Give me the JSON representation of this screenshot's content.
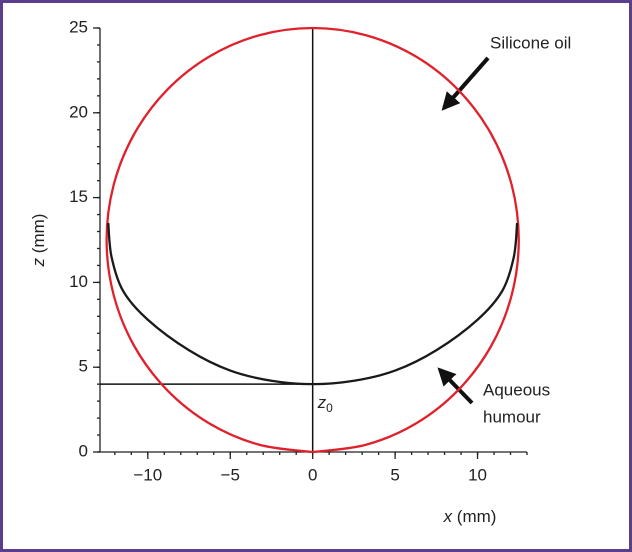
{
  "chart_data": {
    "type": "line",
    "xlabel": {
      "var": "x",
      "unit": " (mm)"
    },
    "ylabel": {
      "var": "z",
      "unit": " (mm)"
    },
    "xlim": [
      -12.9,
      13
    ],
    "ylim": [
      0,
      25
    ],
    "xticks": [
      {
        "value": -10,
        "label": "−10"
      },
      {
        "value": -5,
        "label": "−5"
      },
      0,
      5,
      10
    ],
    "yticks": [
      0,
      5,
      10,
      15,
      20,
      25
    ],
    "minor_tick_step": 1,
    "reference_lines": {
      "x0": 0,
      "z0": 4,
      "z0_label": {
        "var": "z",
        "sub": "0"
      }
    },
    "annotations": [
      {
        "lines": [
          "Silicone oil"
        ]
      },
      {
        "lines": [
          "Aqueous",
          "humour"
        ]
      }
    ],
    "series": [
      {
        "color": "#e0202a",
        "x": [
          0,
          3.235,
          6.25,
          8.839,
          10.825,
          12.074,
          12.5,
          12.074,
          10.825,
          8.839,
          6.25,
          3.235,
          0,
          -3.235,
          -6.25,
          -8.839,
          -10.825,
          -12.074,
          -12.5,
          -12.074,
          -10.825,
          -8.839,
          -6.25,
          -3.235,
          0
        ],
        "values": [
          0,
          0.426,
          1.675,
          3.661,
          6.25,
          9.265,
          12.5,
          15.735,
          18.75,
          21.339,
          23.325,
          24.574,
          25,
          24.574,
          23.325,
          21.339,
          18.75,
          15.735,
          12.5,
          9.265,
          6.25,
          3.661,
          1.675,
          0.426,
          0
        ]
      },
      {
        "color": "#1a1a1a",
        "x": [
          -12.4,
          -12.2,
          -11.5,
          -10,
          -7.5,
          -5,
          -2.5,
          0,
          2.5,
          5,
          7.5,
          10,
          11.5,
          12.2,
          12.4
        ],
        "values": [
          13.5,
          11.5,
          9.5,
          7.8,
          6.0,
          4.8,
          4.2,
          4,
          4.2,
          4.8,
          6.0,
          7.8,
          9.5,
          11.5,
          13.5
        ]
      }
    ]
  }
}
